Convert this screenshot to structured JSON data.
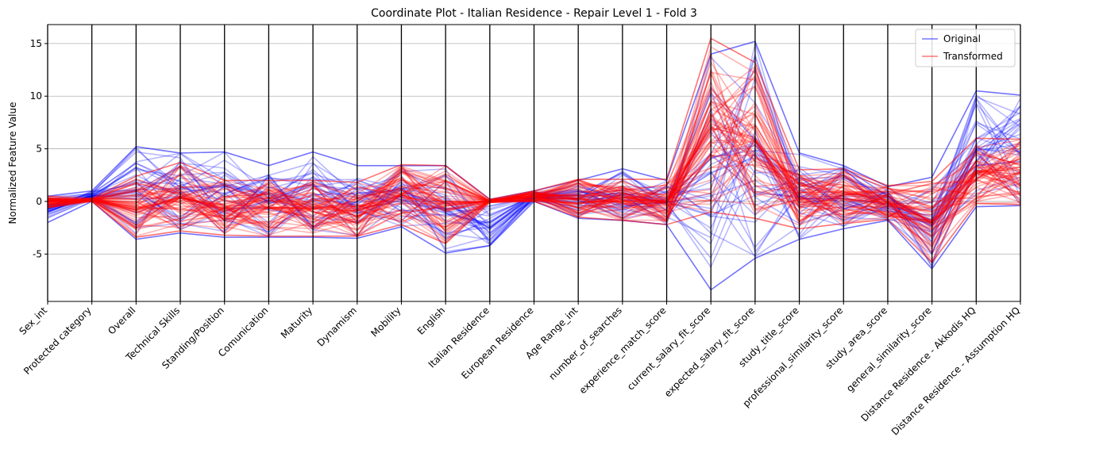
{
  "chart_data": {
    "type": "line",
    "subtype": "parallel-coordinates",
    "title": "Coordinate Plot - Italian Residence - Repair Level 1 - Fold 3",
    "xlabel": "",
    "ylabel": "Normalized Feature Value",
    "ylim": [
      -9.5,
      16.8
    ],
    "yticks": [
      -5,
      0,
      5,
      10,
      15
    ],
    "grid": "horizontal",
    "legend_position": "top-right",
    "categories": [
      "Sex_int",
      "Protected category",
      "Overall",
      "Technical Skills",
      "Standing/Position",
      "Comunication",
      "Maturity",
      "Dynamism",
      "Mobility",
      "English",
      "Italian Residence",
      "European Residence",
      "Age Range_int",
      "number_of_searches",
      "experience_match_score",
      "current_salary_fit_score",
      "expected_salary_fit_score",
      "study_title_score",
      "professional_similarity_score",
      "study_area_score",
      "general_similarity_score",
      "Distance Residence - Akkodis HQ",
      "Distance Residence - Assumption HQ"
    ],
    "series": [
      {
        "name": "Original",
        "color": "#0000ff",
        "ranges": [
          [
            -2.0,
            0.5
          ],
          [
            0.0,
            1.0
          ],
          [
            -3.6,
            5.2
          ],
          [
            -3.0,
            4.6
          ],
          [
            -3.4,
            4.7
          ],
          [
            -3.4,
            3.4
          ],
          [
            -3.4,
            4.7
          ],
          [
            -3.5,
            3.4
          ],
          [
            -2.4,
            3.4
          ],
          [
            -4.9,
            3.4
          ],
          [
            -4.2,
            0.2
          ],
          [
            0.0,
            1.0
          ],
          [
            -1.6,
            2.0
          ],
          [
            -1.8,
            3.1
          ],
          [
            -2.2,
            2.0
          ],
          [
            -8.4,
            14.0
          ],
          [
            -5.4,
            15.2
          ],
          [
            -3.6,
            4.6
          ],
          [
            -2.6,
            3.4
          ],
          [
            -1.8,
            1.4
          ],
          [
            -6.4,
            2.3
          ],
          [
            -0.5,
            10.5
          ],
          [
            -0.4,
            10.1
          ]
        ]
      },
      {
        "name": "Transformed",
        "color": "#ff0000",
        "ranges": [
          [
            -0.6,
            0.5
          ],
          [
            0.0,
            0.3
          ],
          [
            -3.4,
            2.4
          ],
          [
            -2.8,
            3.7
          ],
          [
            -3.2,
            2.0
          ],
          [
            -3.3,
            2.0
          ],
          [
            -3.3,
            2.0
          ],
          [
            -3.3,
            1.8
          ],
          [
            -2.2,
            3.5
          ],
          [
            -4.0,
            3.4
          ],
          [
            -0.1,
            0.2
          ],
          [
            0.0,
            1.0
          ],
          [
            -1.5,
            2.1
          ],
          [
            -1.8,
            2.1
          ],
          [
            -2.2,
            2.1
          ],
          [
            -1.0,
            15.5
          ],
          [
            -1.6,
            13.2
          ],
          [
            -2.6,
            3.0
          ],
          [
            -2.1,
            3.1
          ],
          [
            -1.7,
            1.5
          ],
          [
            -5.8,
            1.9
          ],
          [
            -0.2,
            6.0
          ],
          [
            -0.3,
            5.9
          ]
        ]
      }
    ]
  }
}
